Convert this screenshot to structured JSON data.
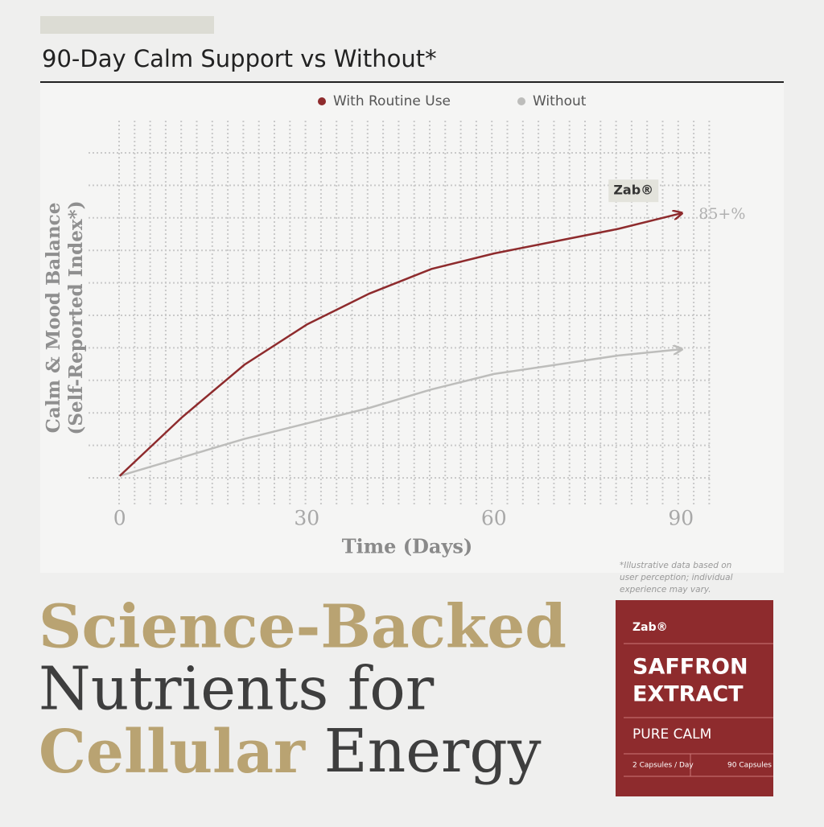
{
  "chart_data": {
    "type": "line",
    "title": "90-Day Calm Support vs Without*",
    "ylabel": [
      "Calm & Mood Balance",
      "(Self-Reported Index*)"
    ],
    "xlabel": "Time (Days)",
    "x": [
      0,
      10,
      20,
      30,
      40,
      50,
      60,
      70,
      80,
      90
    ],
    "series": [
      {
        "name": "With Routine Use",
        "color": "#8e2b2d",
        "values": [
          0,
          19,
          36,
          49,
          59,
          67,
          72,
          76,
          80,
          85
        ]
      },
      {
        "name": "Without",
        "color": "#bdbdbb",
        "values": [
          0,
          6,
          12,
          17,
          22,
          28,
          33,
          36,
          39,
          41
        ]
      }
    ],
    "xlim": [
      -5,
      95
    ],
    "xticks": [
      0,
      30,
      60,
      90
    ],
    "ylim": [
      -10,
      115
    ],
    "annotations": [
      "Zab®",
      "85+%"
    ],
    "legend": "top",
    "grid": true
  },
  "footnote": "*Illustrative data based on user perception; individual experience may vary.",
  "headline": [
    [
      "Science-Backed"
    ],
    [
      "Nutrients for"
    ],
    [
      "Cellular",
      " Energy"
    ]
  ],
  "product": {
    "brand": "Zab®",
    "name": [
      "SAFFRON",
      "EXTRACT"
    ],
    "tagline": "PURE CALM",
    "dose": "2 Capsules / Day",
    "count": "90 Capsules"
  }
}
